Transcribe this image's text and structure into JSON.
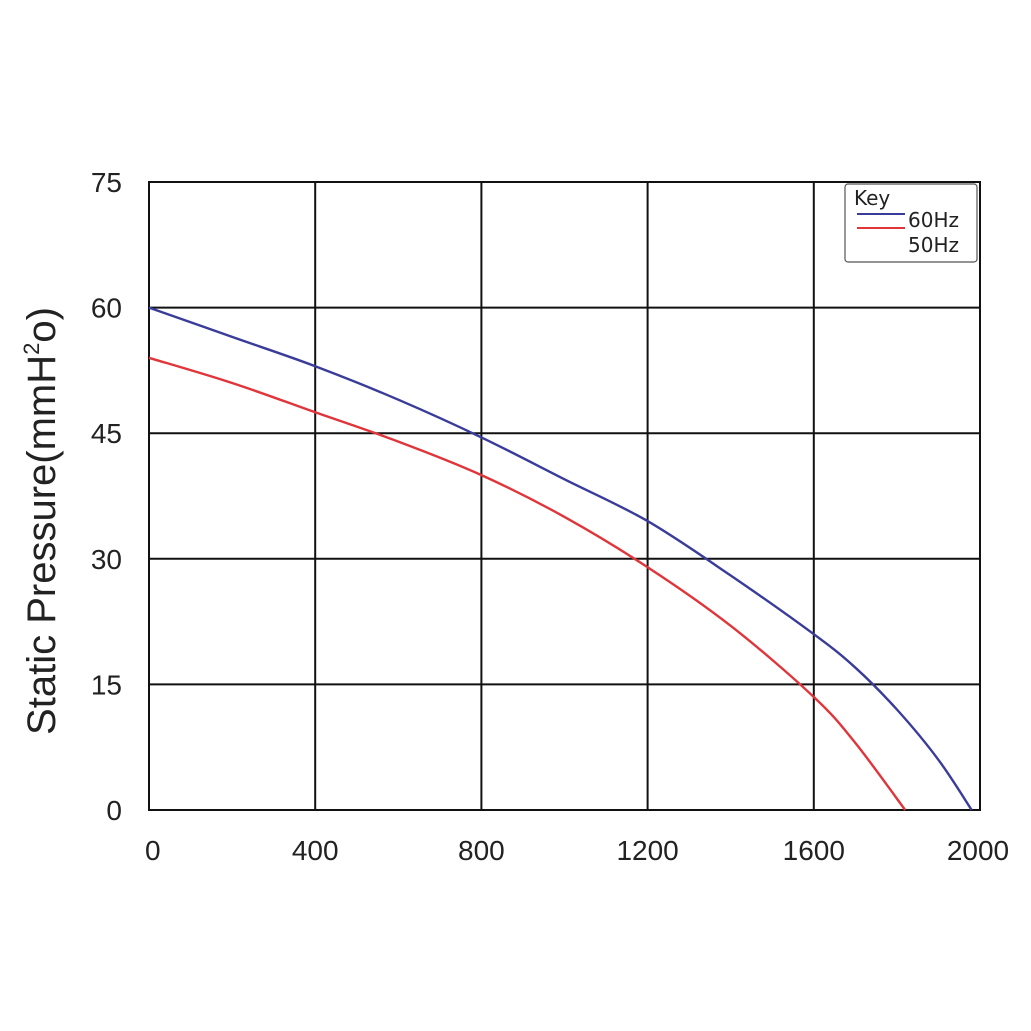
{
  "chart_data": {
    "type": "line",
    "title": "",
    "xlabel": "",
    "ylabel": "Static Pressure(mmH",
    "ylabel_sup": "2",
    "ylabel_tail": "o)",
    "xlim": [
      0,
      2000
    ],
    "ylim": [
      0,
      75
    ],
    "xticks": [
      0,
      400,
      800,
      1200,
      1600,
      2000
    ],
    "yticks": [
      0,
      15,
      30,
      45,
      60,
      75
    ],
    "xtick_labels": [
      "0",
      "400",
      "800",
      "1200",
      "1600",
      "2000"
    ],
    "ytick_labels": [
      "0",
      "15",
      "30",
      "45",
      "60",
      "75"
    ],
    "grid": true,
    "legend": {
      "title": "Key",
      "placement": "top-right",
      "entries": [
        "60Hz",
        "50Hz"
      ]
    },
    "series": [
      {
        "name": "60Hz",
        "color": "#3a3c9a",
        "x": [
          0,
          200,
          400,
          600,
          800,
          1000,
          1200,
          1400,
          1600,
          1700,
          1800,
          1900,
          1980
        ],
        "y": [
          60,
          56.5,
          53,
          49,
          44.5,
          39.5,
          34.5,
          28,
          21,
          17,
          12,
          6,
          0
        ]
      },
      {
        "name": "50Hz",
        "color": "#e0353a",
        "x": [
          0,
          200,
          400,
          600,
          800,
          1000,
          1200,
          1400,
          1600,
          1700,
          1820
        ],
        "y": [
          54,
          51,
          47.5,
          44,
          40,
          35,
          29,
          22,
          13.5,
          8,
          0
        ]
      }
    ]
  }
}
